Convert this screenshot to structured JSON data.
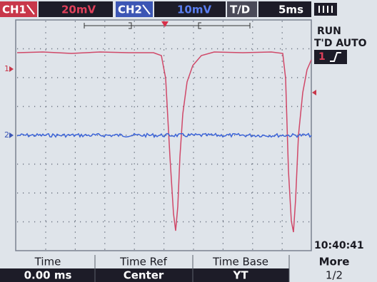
{
  "top_bar": {
    "ch1": "CH1",
    "ch1_scale": "20mV",
    "ch2": "CH2",
    "ch2_scale": "10mV",
    "timebase_label": "T/D",
    "timebase": "5ms"
  },
  "status": {
    "run": "RUN",
    "trigger_mode": "T'D AUTO",
    "trigger_source": "1",
    "time": "10:40:41"
  },
  "markers": {
    "ch1": "1",
    "ch2": "2"
  },
  "menu": [
    {
      "label": "Time",
      "value": "0.00 ms"
    },
    {
      "label": "Time Ref",
      "value": "Center"
    },
    {
      "label": "Time Base",
      "value": "YT"
    },
    {
      "label": "More",
      "value": "1/2"
    }
  ]
}
